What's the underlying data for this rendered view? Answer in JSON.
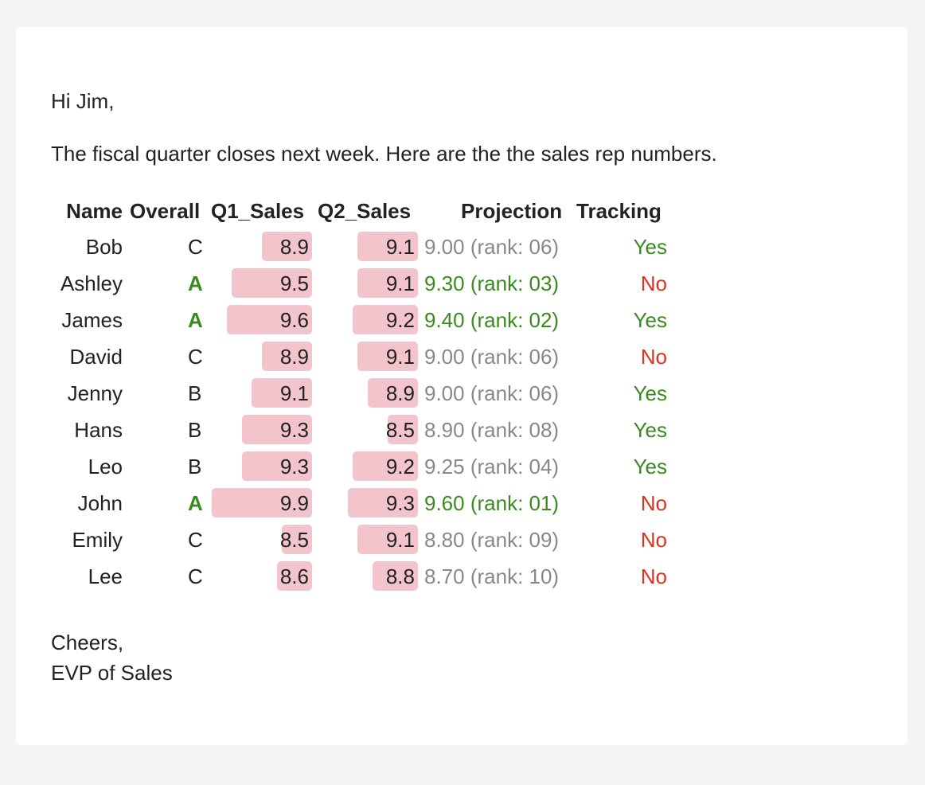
{
  "email": {
    "greeting": "Hi Jim,",
    "intro": "The fiscal quarter closes next week. Here are the the sales rep numbers.",
    "closing": [
      "Cheers,",
      "EVP of Sales"
    ]
  },
  "table": {
    "headers": [
      "Name",
      "Overall",
      "Q1_Sales",
      "Q2_Sales",
      "Projection",
      "Tracking"
    ],
    "rows": [
      {
        "name": "Bob",
        "overall": "C",
        "q1": "8.9",
        "q2": "9.1",
        "projection": "9.00 (rank: 06)",
        "tracking": "Yes"
      },
      {
        "name": "Ashley",
        "overall": "A",
        "q1": "9.5",
        "q2": "9.1",
        "projection": "9.30 (rank: 03)",
        "tracking": "No"
      },
      {
        "name": "James",
        "overall": "A",
        "q1": "9.6",
        "q2": "9.2",
        "projection": "9.40 (rank: 02)",
        "tracking": "Yes"
      },
      {
        "name": "David",
        "overall": "C",
        "q1": "8.9",
        "q2": "9.1",
        "projection": "9.00 (rank: 06)",
        "tracking": "No"
      },
      {
        "name": "Jenny",
        "overall": "B",
        "q1": "9.1",
        "q2": "8.9",
        "projection": "9.00 (rank: 06)",
        "tracking": "Yes"
      },
      {
        "name": "Hans",
        "overall": "B",
        "q1": "9.3",
        "q2": "8.5",
        "projection": "8.90 (rank: 08)",
        "tracking": "Yes"
      },
      {
        "name": "Leo",
        "overall": "B",
        "q1": "9.3",
        "q2": "9.2",
        "projection": "9.25 (rank: 04)",
        "tracking": "Yes"
      },
      {
        "name": "John",
        "overall": "A",
        "q1": "9.9",
        "q2": "9.3",
        "projection": "9.60 (rank: 01)",
        "tracking": "No"
      },
      {
        "name": "Emily",
        "overall": "C",
        "q1": "8.5",
        "q2": "9.1",
        "projection": "8.80 (rank: 09)",
        "tracking": "No"
      },
      {
        "name": "Lee",
        "overall": "C",
        "q1": "8.6",
        "q2": "8.8",
        "projection": "8.70 (rank: 10)",
        "tracking": "No"
      }
    ]
  },
  "colors": {
    "bar": "#f3c4cc",
    "positive": "#3a8a1f",
    "negative": "#e0301e",
    "muted": "#888888"
  }
}
